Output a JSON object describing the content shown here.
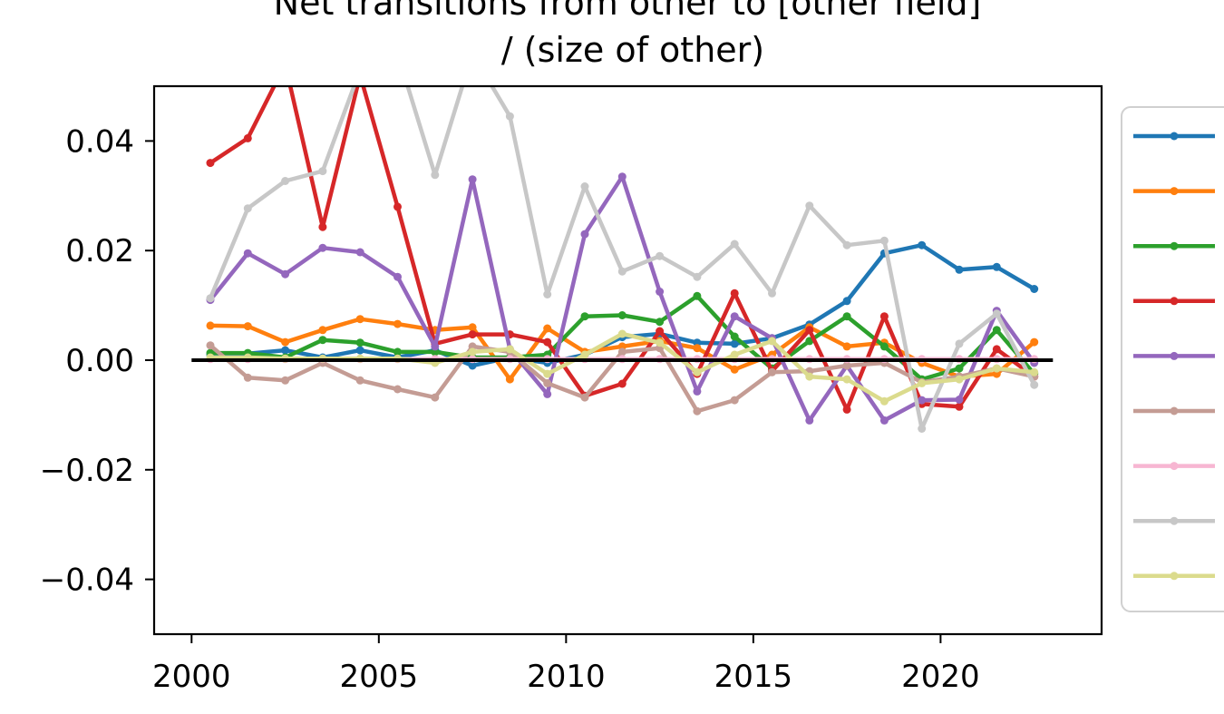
{
  "chart_data": {
    "type": "line",
    "title_lines": [
      "Net transitions from other to [other field]",
      "/ (size of other)"
    ],
    "xlabel": "",
    "ylabel": "",
    "xlim": [
      1999,
      2024.3
    ],
    "ylim": [
      -0.05,
      0.05
    ],
    "x_ticks": [
      2000,
      2005,
      2010,
      2015,
      2020
    ],
    "y_ticks": [
      0.04,
      0.02,
      0.0,
      -0.02,
      -0.04
    ],
    "y_tick_labels": [
      "0.04",
      "0.02",
      "0.00",
      "−0.02",
      "−0.04"
    ],
    "x": [
      2000.5,
      2001.5,
      2002.5,
      2003.5,
      2004.5,
      2005.5,
      2006.5,
      2007.5,
      2008.5,
      2009.5,
      2010.5,
      2011.5,
      2012.5,
      2013.5,
      2014.5,
      2015.5,
      2016.5,
      2017.5,
      2018.5,
      2019.5,
      2020.5,
      2021.5,
      2022.5
    ],
    "reference_line": {
      "y": 0,
      "x_from": 2000,
      "x_to": 2023,
      "color": "#000000"
    },
    "legend": {
      "placement": "right, outside plot",
      "labels_visible": false
    },
    "grid": false,
    "series": [
      {
        "color": "#1f77b4",
        "values": [
          0.001,
          0.0012,
          0.0018,
          0.0005,
          0.0018,
          0.0005,
          0.0018,
          -0.001,
          0.0005,
          -0.0005,
          0.001,
          0.0042,
          0.0048,
          0.0032,
          0.003,
          0.004,
          0.0065,
          0.0108,
          0.0195,
          0.021,
          0.0165,
          0.017,
          0.013
        ]
      },
      {
        "color": "#ff7f0e",
        "values": [
          0.0063,
          0.0062,
          0.0033,
          0.0055,
          0.0075,
          0.0066,
          0.0055,
          0.006,
          -0.0035,
          0.0058,
          0.0015,
          0.0025,
          0.0035,
          0.0022,
          -0.0017,
          0.001,
          0.006,
          0.0025,
          0.0032,
          -0.0005,
          -0.003,
          -0.0025,
          0.0033
        ]
      },
      {
        "color": "#2ca02c",
        "values": [
          0.0013,
          0.0013,
          0.0005,
          0.0037,
          0.0032,
          0.0015,
          0.0015,
          0.0005,
          0.0005,
          0.001,
          0.008,
          0.0082,
          0.007,
          0.0117,
          0.0043,
          -0.0015,
          0.0035,
          0.008,
          0.0025,
          -0.0035,
          -0.0015,
          0.0055,
          -0.0025
        ]
      },
      {
        "color": "#d62728",
        "values": [
          0.036,
          0.0405,
          0.054,
          0.0243,
          0.052,
          0.028,
          0.003,
          0.0047,
          0.0047,
          0.0033,
          -0.0065,
          -0.0043,
          0.0053,
          -0.0025,
          0.0122,
          -0.002,
          0.0055,
          -0.009,
          0.008,
          -0.008,
          -0.0085,
          0.002,
          -0.003
        ]
      },
      {
        "color": "#9467bd",
        "values": [
          0.011,
          0.0195,
          0.0157,
          0.0205,
          0.0197,
          0.0152,
          0.0025,
          0.033,
          0.002,
          -0.0062,
          0.023,
          0.0335,
          0.0125,
          -0.0057,
          0.008,
          0.004,
          -0.011,
          -0.001,
          -0.011,
          -0.0073,
          -0.0072,
          0.009,
          -0.0005
        ]
      },
      {
        "color": "#c49c94",
        "values": [
          0.0027,
          -0.0032,
          -0.0037,
          -0.0005,
          -0.0037,
          -0.0053,
          -0.0068,
          0.0025,
          0.0015,
          -0.0042,
          -0.0068,
          0.0015,
          0.0022,
          -0.0093,
          -0.0073,
          -0.0022,
          -0.002,
          -0.001,
          -0.0005,
          -0.004,
          -0.003,
          -0.0015,
          -0.003
        ]
      },
      {
        "color": "#f7b6d2",
        "values": [
          0.0002,
          0.0002,
          0.0002,
          0.0002,
          0.0002,
          0.0002,
          0.0002,
          0.0002,
          0.0002,
          0.0002,
          0.0002,
          0.0002,
          0.0002,
          0.0002,
          0.0002,
          0.0002,
          0.0002,
          0.0002,
          0.0002,
          0.0002,
          0.0002,
          0.0002,
          0.0002
        ]
      },
      {
        "color": "#c7c7c7",
        "values": [
          0.0113,
          0.0277,
          0.0327,
          0.0345,
          0.053,
          0.056,
          0.0338,
          0.056,
          0.0445,
          0.012,
          0.0317,
          0.0162,
          0.019,
          0.0152,
          0.0212,
          0.0122,
          0.0282,
          0.021,
          0.0218,
          -0.0125,
          0.003,
          0.0085,
          -0.0045
        ]
      },
      {
        "color": "#dbdb8d",
        "values": [
          0.0005,
          0.0005,
          0.0003,
          0.0003,
          0.0003,
          0.0003,
          -0.0005,
          0.0015,
          0.002,
          -0.0025,
          0.001,
          0.0048,
          0.0032,
          -0.0022,
          0.001,
          0.0035,
          -0.003,
          -0.0035,
          -0.0075,
          -0.0042,
          -0.0035,
          -0.0015,
          -0.0022
        ]
      }
    ]
  }
}
